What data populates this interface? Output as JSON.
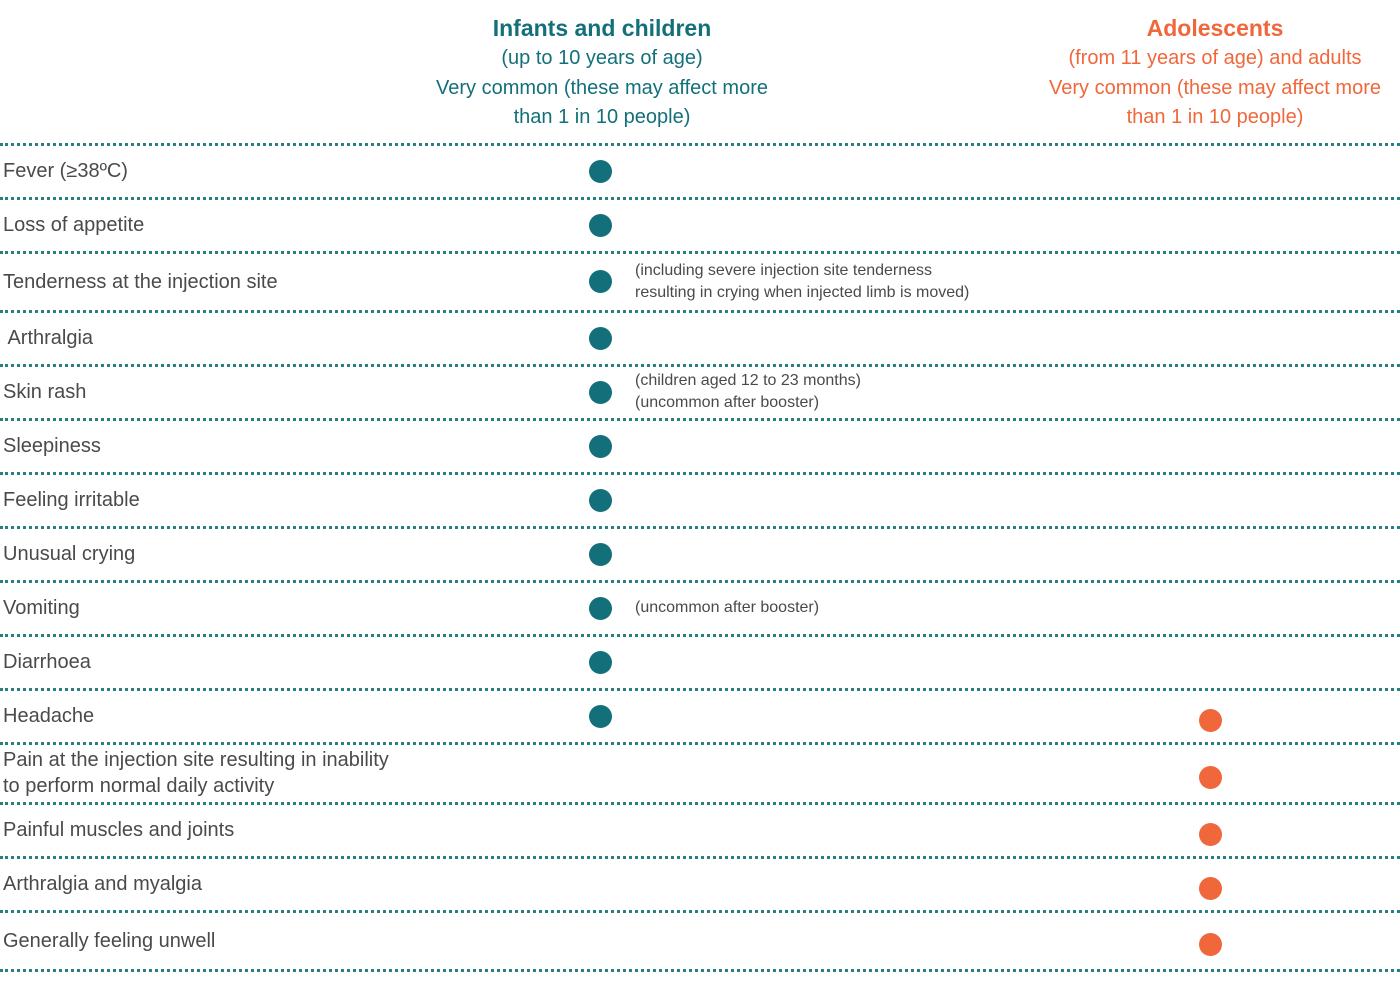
{
  "headers": {
    "children": {
      "title": "Infants and children",
      "line1": "(up to 10 years of age)",
      "line2": "Very common (these may affect more",
      "line3": "than 1 in 10 people)",
      "color": "#13707a"
    },
    "adults": {
      "title": "Adolescents",
      "line1": "(from 11 years of age) and adults",
      "line2": "Very common (these may affect more",
      "line3": "than 1 in 10 people)",
      "color": "#f0673b"
    }
  },
  "rows": [
    {
      "label": "Fever (≥38ºC)",
      "children": true,
      "adults": false,
      "note": ""
    },
    {
      "label": "Loss of appetite",
      "children": true,
      "adults": false,
      "note": ""
    },
    {
      "label": "Tenderness at the injection site",
      "children": true,
      "adults": false,
      "note": "(including severe injection site tenderness\nresulting in crying when injected limb is moved)"
    },
    {
      "label": " Arthralgia",
      "children": true,
      "adults": false,
      "note": ""
    },
    {
      "label": "Skin rash",
      "children": true,
      "adults": false,
      "note": "(children aged 12 to 23 months)\n(uncommon after booster)"
    },
    {
      "label": "Sleepiness",
      "children": true,
      "adults": false,
      "note": ""
    },
    {
      "label": "Feeling irritable",
      "children": true,
      "adults": false,
      "note": ""
    },
    {
      "label": "Unusual crying",
      "children": true,
      "adults": false,
      "note": ""
    },
    {
      "label": "Vomiting",
      "children": true,
      "adults": false,
      "note": "(uncommon after booster)"
    },
    {
      "label": "Diarrhoea",
      "children": true,
      "adults": false,
      "note": ""
    },
    {
      "label": "Headache",
      "children": true,
      "adults": true,
      "note": ""
    },
    {
      "label": "Pain at the injection site resulting in inability\nto perform normal daily activity",
      "children": false,
      "adults": true,
      "note": ""
    },
    {
      "label": "Painful muscles and joints",
      "children": false,
      "adults": true,
      "note": ""
    },
    {
      "label": "Arthralgia and myalgia",
      "children": false,
      "adults": true,
      "note": ""
    },
    {
      "label": "Generally feeling unwell",
      "children": false,
      "adults": true,
      "note": ""
    }
  ]
}
